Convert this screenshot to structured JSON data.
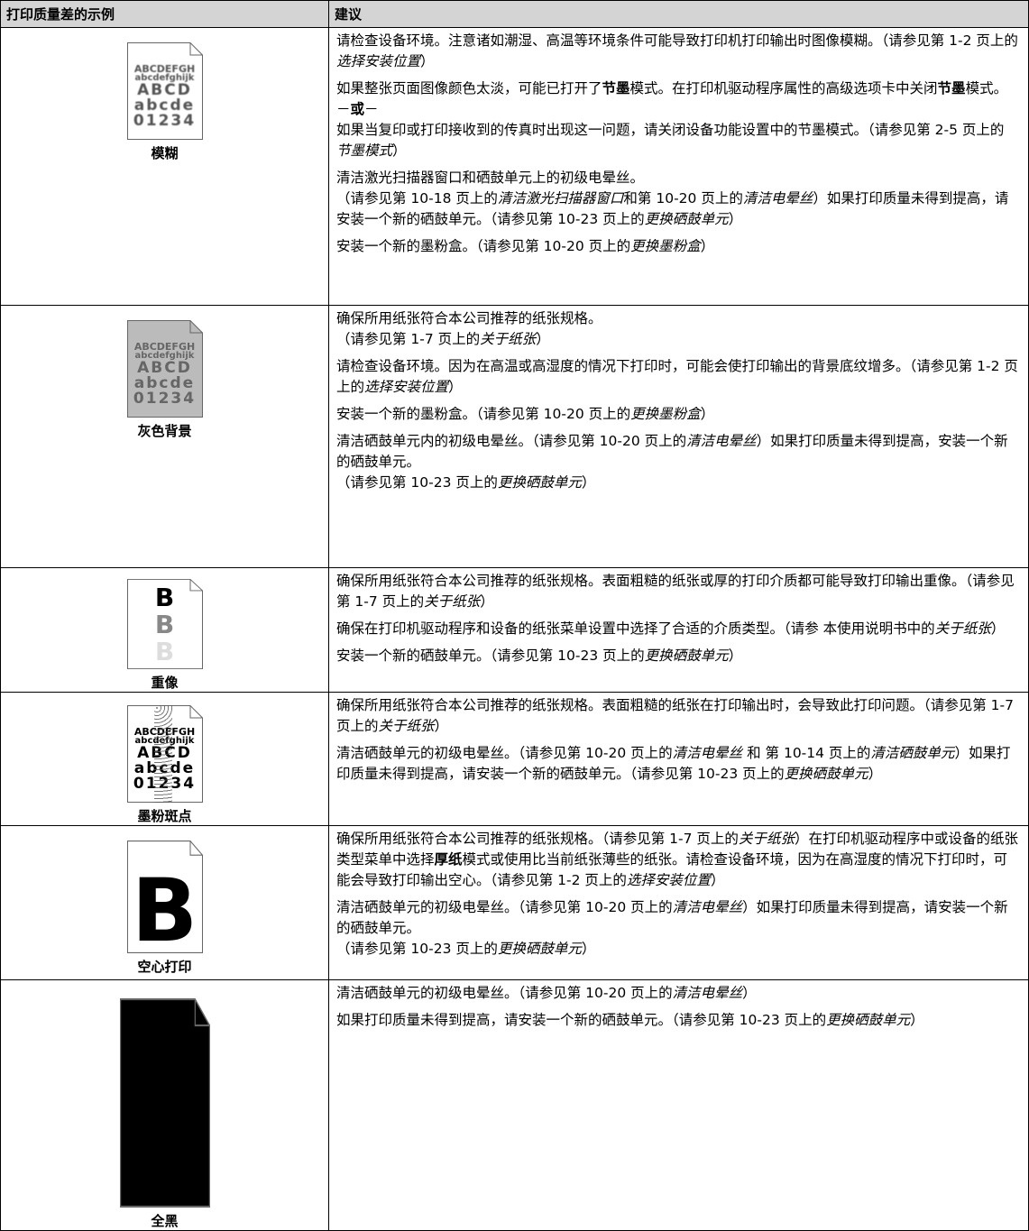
{
  "table": {
    "header": [
      "打印质量差的示例",
      "建议"
    ],
    "rows": [
      {
        "caption": "模糊",
        "sample": [
          "ABCDEFGH",
          "abcdefghijk",
          "ABCD",
          "abcde",
          "01234"
        ],
        "advice": [
          [
            [
              "请检查设备环境。注意诸如潮湿、高温等环境条件可能导致打印机打印输出时图像模糊。（请参见第 1-2 页上的",
              {
                "i": "选择安装位置"
              },
              "）"
            ]
          ],
          [
            [
              "如果整张页面图像颜色太淡，可能已打开了",
              {
                "b": "节墨"
              },
              "模式。在打印机驱动程序属性的高级选项卡中关闭",
              {
                "b": "节墨"
              },
              "模式。"
            ],
            [
              "－",
              {
                "b": "或"
              },
              "－"
            ],
            [
              "如果当复印或打印接收到的传真时出现这一问题，请关闭设备功能设置中的节墨模式。（请参见第 2-5 页上的 ",
              {
                "i": "节墨模式"
              },
              "）"
            ]
          ],
          [
            [
              "清洁激光扫描器窗口和硒鼓单元上的初级电晕丝。"
            ],
            [
              "（请参见第 10-18 页上的",
              {
                "i": "清洁激光扫描器窗口"
              },
              "和第 10-20 页上的",
              {
                "i": "清洁电晕丝"
              },
              "）如果打印质量未得到提高，请安装一个新的硒鼓单元。（请参见第 10-23 页上的",
              {
                "i": "更换硒鼓单元"
              },
              "）"
            ]
          ],
          [
            [
              "安装一个新的墨粉盒。（请参见第 10-20 页上的",
              {
                "i": "更换墨粉盒"
              },
              "）"
            ]
          ]
        ]
      },
      {
        "caption": "灰色背景",
        "sample": [
          "ABCDEFGH",
          "abcdefghijk",
          "ABCD",
          "abcde",
          "01234"
        ],
        "advice": [
          [
            [
              "确保所用纸张符合本公司推荐的纸张规格。"
            ],
            [
              "（请参见第 1-7 页上的",
              {
                "i": "关于纸张"
              },
              "）"
            ]
          ],
          [
            [
              "请检查设备环境。因为在高温或高湿度的情况下打印时，可能会使打印输出的背景底纹增多。（请参见第 1-2 页上的",
              {
                "i": "选择安装位置"
              },
              "）"
            ]
          ],
          [
            [
              "安装一个新的墨粉盒。（请参见第 10-20 页上的",
              {
                "i": "更换墨粉盒"
              },
              "）"
            ]
          ],
          [
            [
              "清洁硒鼓单元内的初级电晕丝。（请参见第 10-20 页上的",
              {
                "i": "清洁电晕丝"
              },
              "）如果打印质量未得到提高，安装一个新的硒鼓单元。"
            ],
            [
              "（请参见第 10-23 页上的",
              {
                "i": "更换硒鼓单元"
              },
              "）"
            ]
          ]
        ]
      },
      {
        "caption": "重像",
        "sample": [
          "B",
          "B",
          "B"
        ],
        "advice": [
          [
            [
              "确保所用纸张符合本公司推荐的纸张规格。表面粗糙的纸张或厚的打印介质都可能导致打印输出重像。（请参见第 1-7 页上的",
              {
                "i": "关于纸张"
              },
              "）"
            ]
          ],
          [
            [
              "确保在打印机驱动程序和设备的纸张菜单设置中选择了合适的介质类型。（请参 本使用说明书中的",
              {
                "i": "关于纸张"
              },
              "）"
            ]
          ],
          [
            [
              "安装一个新的硒鼓单元。（请参见第 10-23 页上的",
              {
                "i": "更换硒鼓单元"
              },
              "）"
            ]
          ]
        ]
      },
      {
        "caption": "墨粉斑点",
        "sample": [
          "ABCDEFGH",
          "abcdefghijk",
          "ABCD",
          "abcde",
          "01234"
        ],
        "advice": [
          [
            [
              "确保所用纸张符合本公司推荐的纸张规格。表面粗糙的纸张在打印输出时，会导致此打印问题。（请参见第 1-7 页上的",
              {
                "i": "关于纸张"
              },
              "）"
            ]
          ],
          [
            [
              "清洁硒鼓单元的初级电晕丝。（请参见第 10-20 页上的",
              {
                "i": "清洁电晕丝"
              },
              " 和 第 10-14 页上的",
              {
                "i": "清洁硒鼓单元"
              },
              "）如果打印质量未得到提高，请安装一个新的硒鼓单元。（请参见第 10-23 页上的",
              {
                "i": "更换硒鼓单元"
              },
              "）"
            ]
          ]
        ]
      },
      {
        "caption": "空心打印",
        "sample": [
          "B"
        ],
        "advice": [
          [
            [
              "确保所用纸张符合本公司推荐的纸张规格。（请参见第 1-7 页上的",
              {
                "i": "关于纸张"
              },
              "）在打印机驱动程序中或设备的纸张类型菜单中选择",
              {
                "b": "厚纸"
              },
              "模式或使用比当前纸张薄些的纸张。请检查设备环境，因为在高湿度的情况下打印时，可能会导致打印输出空心。（请参见第 1-2 页上的",
              {
                "i": "选择安装位置"
              },
              "）"
            ]
          ],
          [
            [
              "清洁硒鼓单元的初级电晕丝。（请参见第 10-20 页上的",
              {
                "i": "清洁电晕丝"
              },
              "）如果打印质量未得到提高，请安装一个新的硒鼓单元。"
            ],
            [
              "（请参见第 10-23 页上的",
              {
                "i": "更换硒鼓单元"
              },
              "）"
            ]
          ]
        ]
      },
      {
        "caption": "全黑",
        "sample": [],
        "advice": [
          [
            [
              "清洁硒鼓单元的初级电晕丝。（请参见第 10-20 页上的",
              {
                "i": "清洁电晕丝"
              },
              "）"
            ]
          ],
          [
            [
              "如果打印质量未得到提高，请安装一个新的硒鼓单元。（请参见第 10-23 页上的",
              {
                "i": "更换硒鼓单元"
              },
              "）"
            ]
          ]
        ]
      }
    ]
  }
}
